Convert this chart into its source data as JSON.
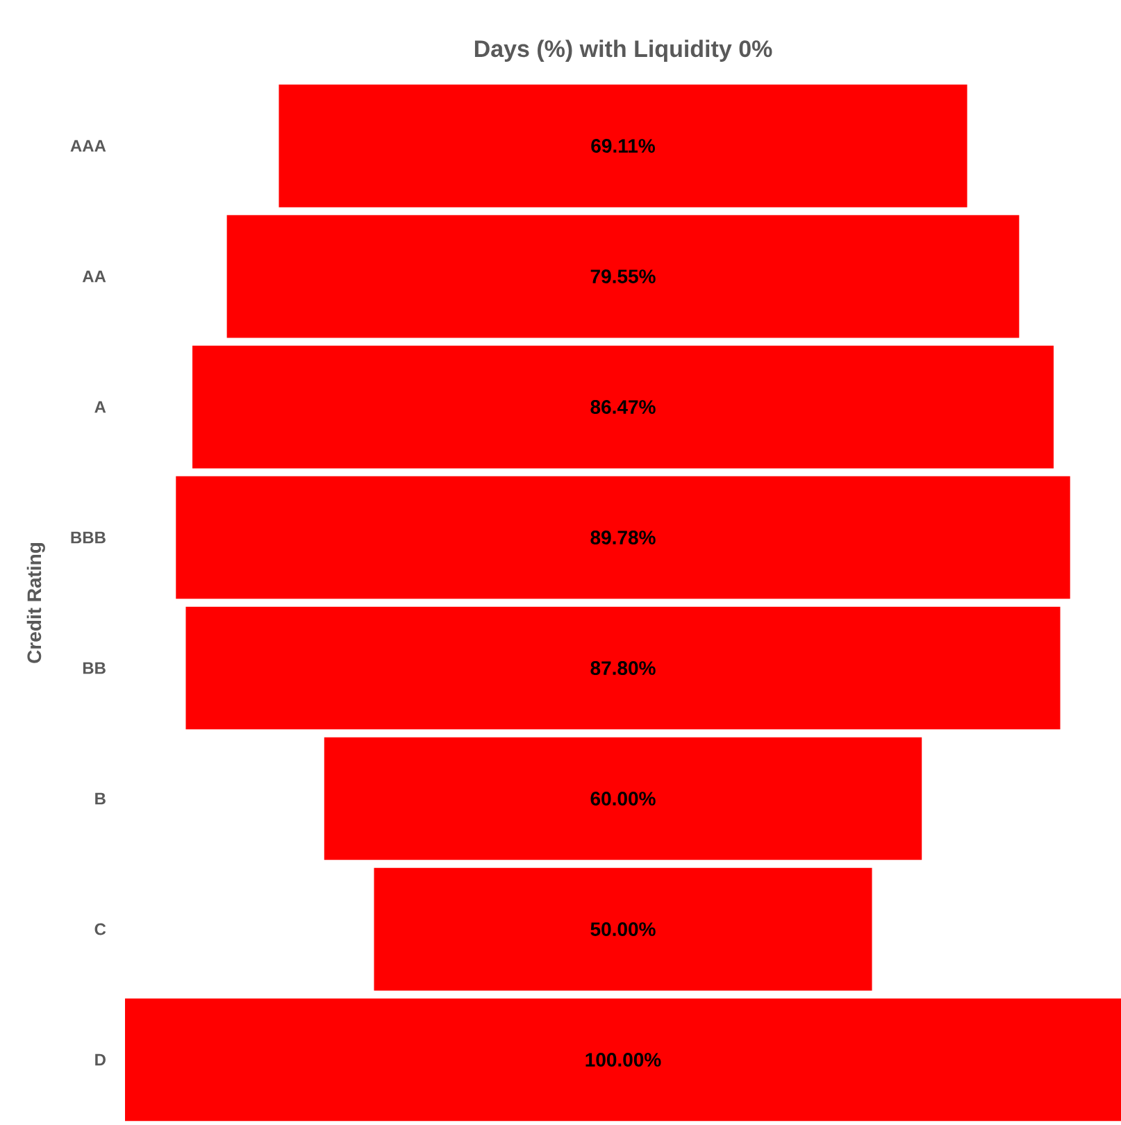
{
  "chart_data": {
    "type": "other",
    "title": "Days (%) with Liquidity 0%",
    "ylabel": "Credit Rating",
    "categories": [
      "AAA",
      "AA",
      "A",
      "BBB",
      "BB",
      "B",
      "C",
      "D"
    ],
    "values": [
      69.11,
      79.55,
      86.47,
      89.78,
      87.8,
      60.0,
      50.0,
      100.0
    ],
    "value_labels": [
      "69.11%",
      "79.55%",
      "86.47%",
      "89.78%",
      "87.80%",
      "60.00%",
      "50.00%",
      "100.00%"
    ],
    "color": "#ff0000"
  }
}
